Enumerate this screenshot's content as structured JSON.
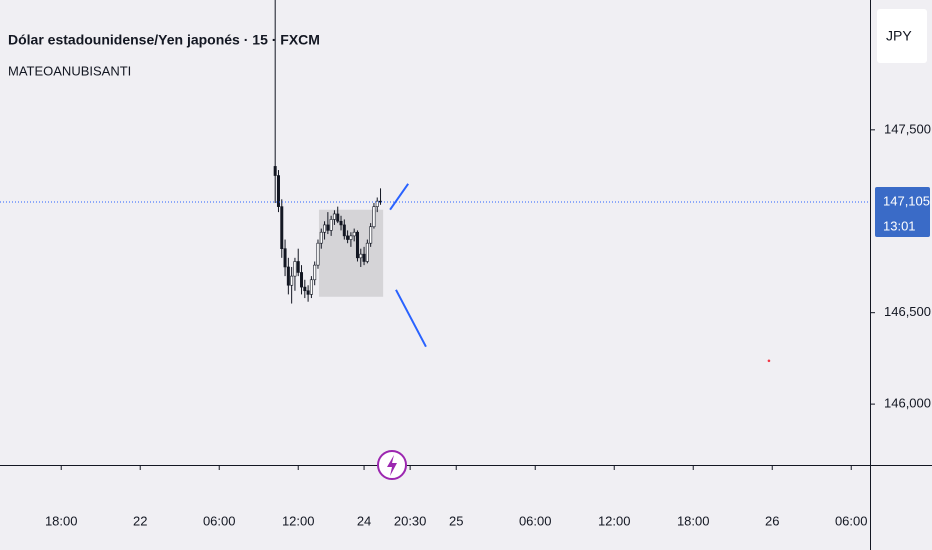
{
  "chart_data": {
    "type": "candlestick",
    "title": "Dólar estadounidense/Yen japonés · 15 · FXCM",
    "subtitle": "MATEOANUBISANTI",
    "currency": "JPY",
    "x": [
      83,
      84,
      85,
      86,
      87,
      88,
      89,
      90,
      91,
      92,
      93,
      94,
      95,
      96,
      97,
      98,
      99,
      100,
      101,
      102,
      103,
      104,
      105,
      106,
      107,
      108,
      109,
      110,
      111,
      112,
      113,
      114,
      115
    ],
    "open": [
      147300,
      147250,
      147080,
      146850,
      146750,
      146650,
      146700,
      146780,
      146720,
      146640,
      146620,
      146600,
      146680,
      146760,
      146880,
      146940,
      146980,
      146950,
      147010,
      147040,
      147000,
      146980,
      146920,
      146900,
      146920,
      146940,
      146800,
      146820,
      146780,
      146880,
      146970,
      147080,
      147110
    ],
    "high": [
      148300,
      147280,
      147120,
      146900,
      146800,
      146750,
      146800,
      146850,
      146760,
      146680,
      146650,
      146700,
      146780,
      146900,
      146960,
      147000,
      147050,
      147030,
      147060,
      147080,
      147030,
      147010,
      146950,
      146940,
      146960,
      146950,
      146850,
      146860,
      146900,
      146990,
      147100,
      147130,
      147180
    ],
    "low": [
      147100,
      147050,
      146800,
      146700,
      146600,
      146550,
      146620,
      146700,
      146600,
      146580,
      146560,
      146580,
      146650,
      146740,
      146850,
      146900,
      146930,
      146920,
      146980,
      146990,
      146950,
      146900,
      146880,
      146860,
      146890,
      146780,
      146750,
      146760,
      146770,
      146860,
      146960,
      147050,
      147090
    ],
    "close": [
      147250,
      147080,
      146850,
      146750,
      146650,
      146700,
      146780,
      146720,
      146640,
      146620,
      146600,
      146680,
      146760,
      146880,
      146940,
      146980,
      146950,
      147010,
      147040,
      147000,
      146980,
      146920,
      146900,
      146920,
      146940,
      146800,
      146820,
      146780,
      146880,
      146970,
      147080,
      147110,
      147105
    ],
    "up_color": "#ffffff",
    "down_color": "#131722",
    "wick_color": "#131722",
    "xlim": [
      -0.6,
      263.7
    ],
    "xticks": [
      {
        "value": 18,
        "label": "18:00"
      },
      {
        "value": 42,
        "label": "22"
      },
      {
        "value": 66,
        "label": "06:00"
      },
      {
        "value": 90,
        "label": "12:00"
      },
      {
        "value": 110,
        "label": "24"
      },
      {
        "value": 124,
        "label": "20:30"
      },
      {
        "value": 138,
        "label": "25"
      },
      {
        "value": 162,
        "label": "06:00"
      },
      {
        "value": 186,
        "label": "12:00"
      },
      {
        "value": 210,
        "label": "18:00"
      },
      {
        "value": 234,
        "label": "26"
      },
      {
        "value": 258,
        "label": "06:00"
      }
    ],
    "ylim": [
      145667,
      148210
    ],
    "yticks": [
      {
        "value": 146000,
        "label": "146,000"
      },
      {
        "value": 146500,
        "label": "146,500"
      },
      {
        "value": 147500,
        "label": "147,500"
      }
    ],
    "last_price": {
      "value": 147105,
      "label": "147,105"
    },
    "countdown": "13:01",
    "rectangle": {
      "x": [
        96.3,
        115.8
      ],
      "y": [
        147063,
        146587
      ],
      "color": "#d5d4d7"
    },
    "lines": [
      {
        "x": [
          117.9,
          123.4
        ],
        "y": [
          147063,
          147205
        ],
        "color": "#2962ff"
      },
      {
        "x": [
          119.7,
          128.8
        ],
        "y": [
          146625,
          146314
        ],
        "color": "#2962ff"
      }
    ],
    "dot": {
      "x": 233.0,
      "y": 146237,
      "color": "#f23645"
    }
  }
}
